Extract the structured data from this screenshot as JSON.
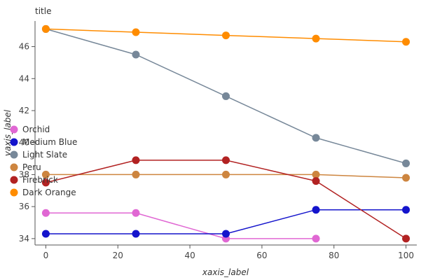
{
  "chart_data": {
    "type": "line",
    "title": "title",
    "xlabel": "xaxis_label",
    "ylabel": "yaxis_label",
    "x": [
      0,
      25,
      50,
      75,
      100
    ],
    "xlim": [
      -3,
      103
    ],
    "ylim": [
      33.6,
      47.6
    ],
    "xticks": [
      "0",
      "20",
      "40",
      "60",
      "80",
      "100"
    ],
    "xtick_values": [
      0,
      20,
      40,
      60,
      80,
      100
    ],
    "yticks": [
      "34",
      "36",
      "38",
      "40",
      "42",
      "44",
      "46"
    ],
    "ytick_values": [
      34,
      36,
      38,
      40,
      42,
      44,
      46
    ],
    "grid": false,
    "legend_position": "left",
    "series": [
      {
        "name": "Orchid",
        "color": "#e067d3",
        "values": [
          35.6,
          35.6,
          34.0,
          34.0,
          null
        ]
      },
      {
        "name": "Medium Blue",
        "color": "#1414cc",
        "values": [
          34.3,
          34.3,
          34.3,
          35.8,
          35.8
        ]
      },
      {
        "name": "Light Slate",
        "color": "#778899",
        "values": [
          47.1,
          45.5,
          42.9,
          40.3,
          38.7
        ]
      },
      {
        "name": "Peru",
        "color": "#cd853f",
        "values": [
          38.0,
          38.0,
          38.0,
          38.0,
          37.8
        ]
      },
      {
        "name": "Firebrick",
        "color": "#b22222",
        "values": [
          37.5,
          38.9,
          38.9,
          37.6,
          34.0
        ]
      },
      {
        "name": "Dark Orange",
        "color": "#ff8c00",
        "values": [
          47.1,
          46.9,
          46.7,
          46.5,
          46.3
        ]
      }
    ]
  }
}
